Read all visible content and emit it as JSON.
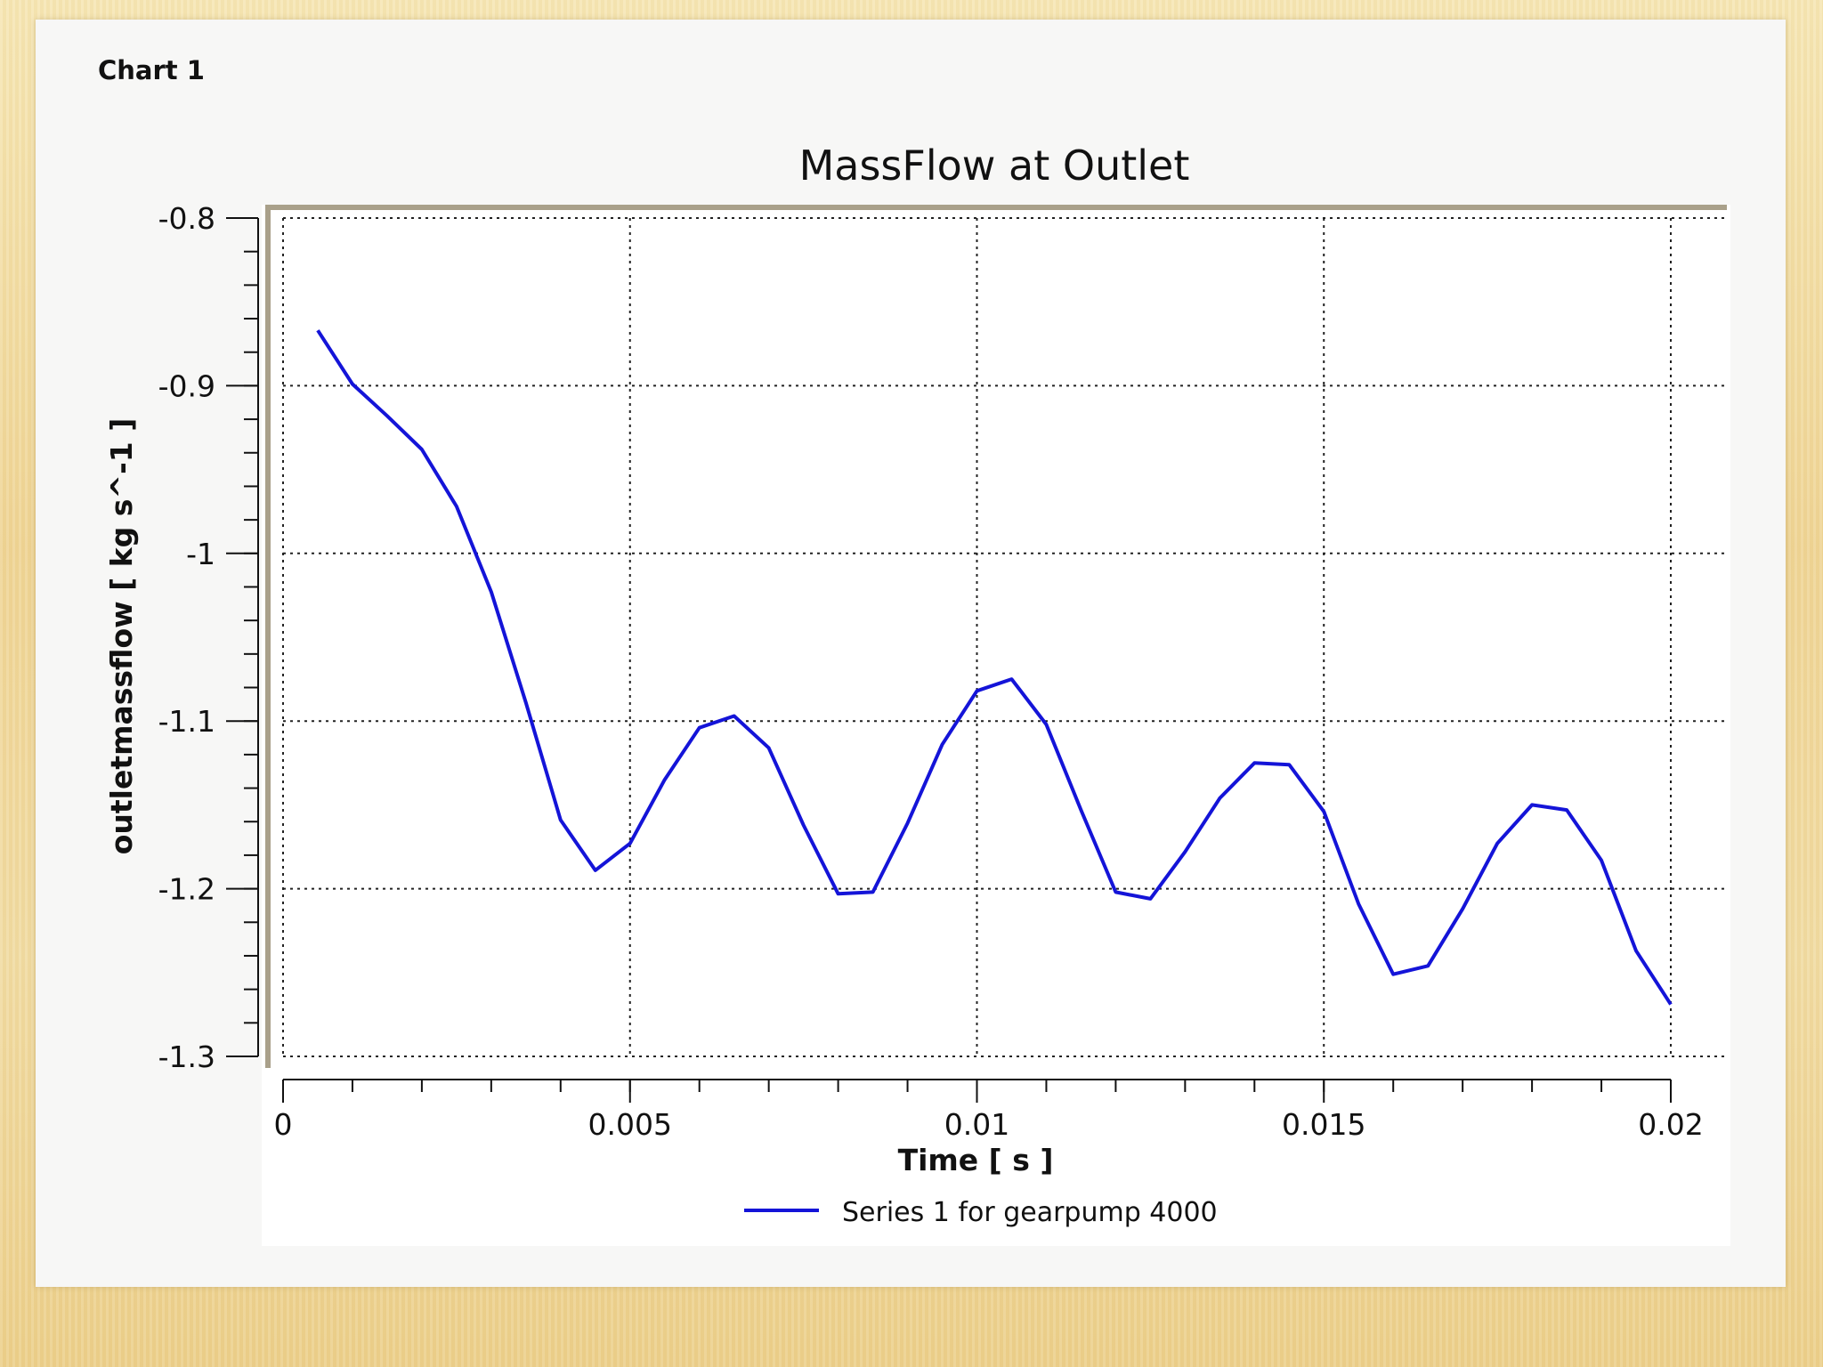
{
  "panel": {
    "title": "Chart 1"
  },
  "chart_data": {
    "type": "line",
    "title": "MassFlow at Outlet",
    "xlabel": "Time [ s ]",
    "ylabel": "outletmassflow [ kg s^-1 ]",
    "xlim": [
      0,
      0.02
    ],
    "ylim": [
      -1.3,
      -0.8
    ],
    "xticks": [
      0,
      0.005,
      0.01,
      0.015,
      0.02
    ],
    "xtick_labels": [
      "0",
      "0.005",
      "0.01",
      "0.015",
      "0.02"
    ],
    "yticks": [
      -0.8,
      -0.9,
      -1,
      -1.1,
      -1.2,
      -1.3
    ],
    "ytick_labels": [
      "-0.8",
      "-0.9",
      "-1",
      "-1.1",
      "-1.2",
      "-1.3"
    ],
    "grid": true,
    "legend_position": "bottom",
    "series": [
      {
        "name": "Series 1 for gearpump 4000",
        "color": "#1414d8",
        "x": [
          0.0005,
          0.001,
          0.0015,
          0.002,
          0.0025,
          0.003,
          0.0035,
          0.004,
          0.0045,
          0.005,
          0.0055,
          0.006,
          0.0065,
          0.007,
          0.0075,
          0.008,
          0.0085,
          0.009,
          0.0095,
          0.01,
          0.0105,
          0.011,
          0.0115,
          0.012,
          0.0125,
          0.013,
          0.0135,
          0.014,
          0.0145,
          0.015,
          0.0155,
          0.016,
          0.0165,
          0.017,
          0.0175,
          0.018,
          0.0185,
          0.019,
          0.0195,
          0.02
        ],
        "y": [
          -0.867,
          -0.899,
          -0.918,
          -0.938,
          -0.972,
          -1.023,
          -1.089,
          -1.159,
          -1.189,
          -1.173,
          -1.135,
          -1.104,
          -1.097,
          -1.116,
          -1.162,
          -1.203,
          -1.202,
          -1.161,
          -1.114,
          -1.082,
          -1.075,
          -1.102,
          -1.153,
          -1.202,
          -1.206,
          -1.178,
          -1.146,
          -1.125,
          -1.126,
          -1.154,
          -1.209,
          -1.251,
          -1.246,
          -1.212,
          -1.173,
          -1.15,
          -1.153,
          -1.183,
          -1.237,
          -1.269
        ]
      }
    ]
  }
}
